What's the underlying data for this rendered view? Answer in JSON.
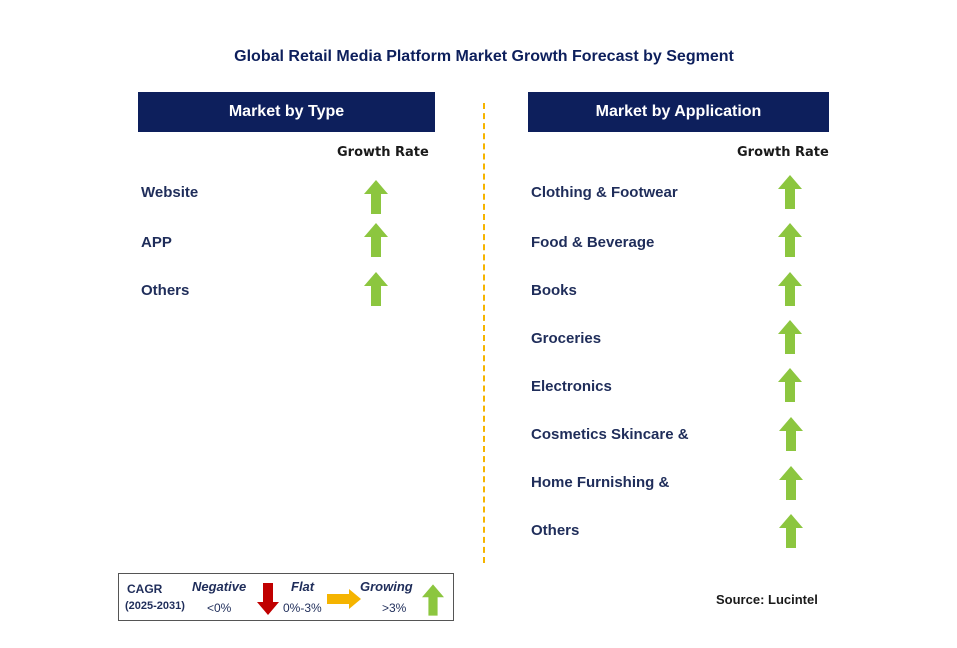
{
  "title": "Global Retail Media Platform Market Growth Forecast by Segment",
  "left_panel": {
    "header": "Market by Type",
    "growth_rate_label": "Growth Rate",
    "items": [
      {
        "label": "Website",
        "trend": "growing"
      },
      {
        "label": "APP",
        "trend": "growing"
      },
      {
        "label": "Others",
        "trend": "growing"
      }
    ]
  },
  "right_panel": {
    "header": "Market by Application",
    "growth_rate_label": "Growth Rate",
    "items": [
      {
        "label": "Clothing & Footwear",
        "trend": "growing"
      },
      {
        "label": "Food & Beverage",
        "trend": "growing"
      },
      {
        "label": "Books",
        "trend": "growing"
      },
      {
        "label": "Groceries",
        "trend": "growing"
      },
      {
        "label": "Electronics",
        "trend": "growing"
      },
      {
        "label": "Cosmetics Skincare &",
        "trend": "growing"
      },
      {
        "label": "Home Furnishing &",
        "trend": "growing"
      },
      {
        "label": "Others",
        "trend": "growing"
      }
    ]
  },
  "legend": {
    "cagr_label": "CAGR",
    "period": "(2025-2031)",
    "negative_label": "Negative",
    "negative_range": "<0%",
    "flat_label": "Flat",
    "flat_range": "0%-3%",
    "growing_label": "Growing",
    "growing_range": ">3%"
  },
  "source": "Source: Lucintel",
  "colors": {
    "header_bg": "#0d1f5c",
    "growing": "#8cc63f",
    "negative": "#c00000",
    "flat": "#f5b400",
    "divider": "#f5b400"
  }
}
